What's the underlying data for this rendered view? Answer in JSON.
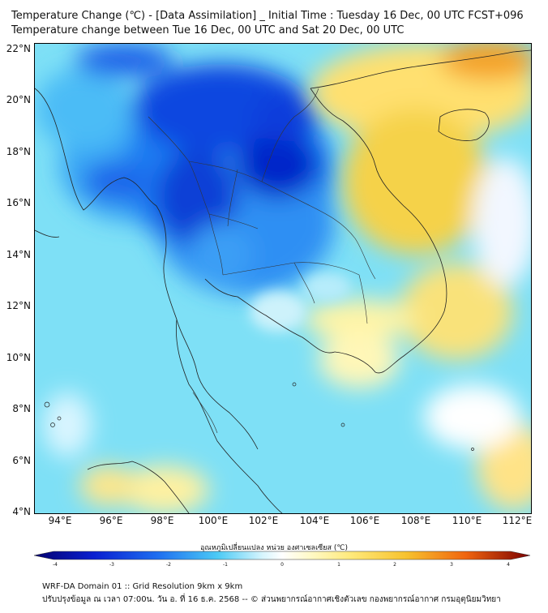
{
  "title_line1": "Temperature Change (℃) - [Data Assimilation] _ Initial Time : Tuesday 16 Dec, 00 UTC FCST+096",
  "title_line2": "Temperature change between Tue 16 Dec, 00 UTC and Sat 20 Dec, 00 UTC",
  "lat_ticks": [
    "22°N",
    "20°N",
    "18°N",
    "16°N",
    "14°N",
    "12°N",
    "10°N",
    "8°N",
    "6°N",
    "4°N"
  ],
  "lon_ticks": [
    "94°E",
    "96°E",
    "98°E",
    "100°E",
    "102°E",
    "104°E",
    "106°E",
    "108°E",
    "110°E",
    "112°E"
  ],
  "colorbar": {
    "label": "อุณหภูมิเปลี่ยนแปลง หน่วย องศาเซลเซียส (℃)",
    "ticks": [
      "-4",
      "-3",
      "-2",
      "-1",
      "0",
      "1",
      "2",
      "3",
      "4"
    ],
    "range": [
      -4,
      4
    ],
    "colors": {
      "min": "#04016e",
      "mid": "#ffffff",
      "max": "#7a0000"
    }
  },
  "map": {
    "lat_range": [
      4,
      22.2
    ],
    "lon_range": [
      93,
      112.5
    ],
    "anomaly_colors": {
      "strong_cooling": "#0011cc",
      "cooling": "#1e7cf2",
      "mild_cooling": "#7ee0f6",
      "neutral": "#ffffff",
      "mild_warming": "#ffee8a",
      "warming": "#f7cf3c",
      "strong_warming": "#f07a10"
    }
  },
  "footer_line1": "WRF-DA Domain 01 :: Grid Resolution 9km x 9km",
  "footer_line2": "ปรับปรุงข้อมูล ณ เวลา 07:00น. วัน อ. ที่ 16 ธ.ค. 2568 -- © ส่วนพยากรณ์อากาศเชิงตัวเลข กองพยากรณ์อากาศ กรมอุตุนิยมวิทยา"
}
